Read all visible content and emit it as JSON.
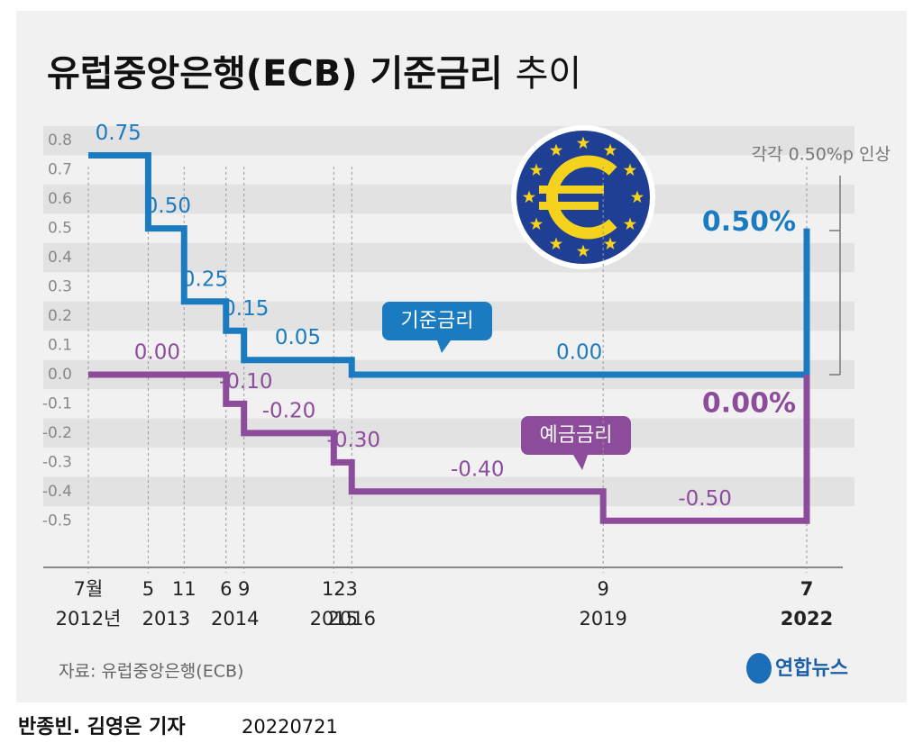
{
  "chart_data": {
    "type": "step",
    "title": "유럽중앙은행(ECB) 기준금리",
    "title_light": "추이",
    "annotation": "각각 0.50%p 인상",
    "source": "자료: 유럽중앙은행(ECB)",
    "logo": "연합뉴스",
    "byline": "반종빈. 김영은 기자",
    "date": "20220721",
    "x": [
      "2012-07",
      "2013-05",
      "2013-11",
      "2014-06",
      "2014-09",
      "2015-12",
      "2016-03",
      "2019-09",
      "2022-07"
    ],
    "xlim": [
      "2012-07",
      "2022-07"
    ],
    "xticks": [
      {
        "value": "2012-07",
        "label": "7월"
      },
      {
        "value": "2013-05",
        "label": "5"
      },
      {
        "value": "2013-11",
        "label": "11"
      },
      {
        "value": "2014-06",
        "label": "6"
      },
      {
        "value": "2014-09",
        "label": "9"
      },
      {
        "value": "2015-12",
        "label": "12"
      },
      {
        "value": "2016-03",
        "label": "3"
      },
      {
        "value": "2019-09",
        "label": "9"
      },
      {
        "value": "2022-07",
        "label": "7"
      }
    ],
    "xtick_years": [
      "2012년",
      "2013",
      "2014",
      "2015",
      "2016",
      "2019",
      "2022"
    ],
    "ylim": [
      -0.57,
      0.85
    ],
    "yticks": [
      -0.5,
      -0.4,
      -0.3,
      -0.2,
      -0.1,
      {
        "value": 0,
        "label": "0.0"
      },
      0.1,
      0.2,
      0.3,
      0.4,
      0.5,
      0.6,
      0.7,
      0.8
    ],
    "grid": true,
    "series": [
      {
        "name": "기준금리",
        "color": "#1b7bc0",
        "values": [
          0.75,
          0.5,
          0.25,
          0.15,
          0.05,
          0.05,
          0,
          0,
          0.5
        ],
        "value_labels": [
          "0.75",
          "0.50",
          "0.25",
          "0.15",
          "0.05",
          null,
          "0.00",
          null,
          "0.50%"
        ]
      },
      {
        "name": "예금금리",
        "color": "#8d4b9c",
        "values": [
          0,
          0,
          0,
          -0.1,
          -0.2,
          -0.3,
          -0.4,
          -0.5,
          0
        ],
        "value_labels": [
          "0.00",
          null,
          null,
          "-0.10",
          "-0.20",
          "-0.30",
          "-0.40",
          "-0.50",
          "0.00%"
        ]
      }
    ]
  }
}
